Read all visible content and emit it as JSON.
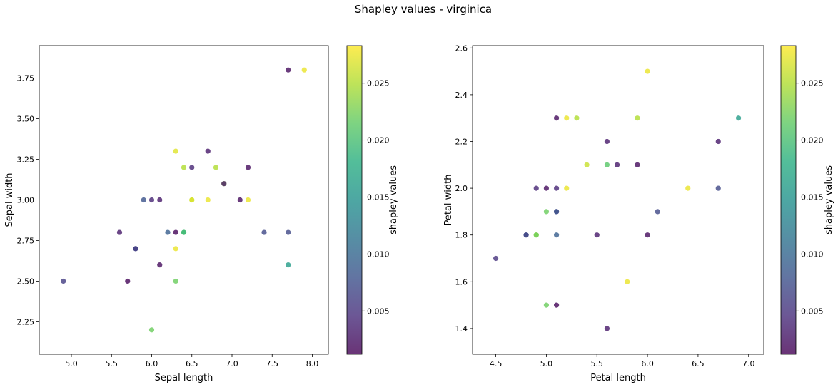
{
  "figure": {
    "suptitle": "Shapley values - virginica"
  },
  "chart_data": [
    {
      "type": "scatter",
      "title": "",
      "xlabel": "Sepal length",
      "ylabel": "Sepal width",
      "xlim": [
        4.6,
        8.2
      ],
      "ylim": [
        2.05,
        3.95
      ],
      "xticks": [
        "5.0",
        "5.5",
        "6.0",
        "6.5",
        "7.0",
        "7.5",
        "8.0"
      ],
      "yticks": [
        "2.25",
        "2.50",
        "2.75",
        "3.00",
        "3.25",
        "3.50",
        "3.75"
      ],
      "colorbar": {
        "label": "shapley values",
        "range": [
          0.0012,
          0.0283
        ],
        "ticks": [
          "0.005",
          "0.010",
          "0.015",
          "0.020",
          "0.025"
        ],
        "colormap": "viridis",
        "alpha": 0.8
      },
      "points": [
        {
          "x": 7.7,
          "y": 3.8,
          "c": 0.002
        },
        {
          "x": 7.9,
          "y": 3.8,
          "c": 0.0275
        },
        {
          "x": 6.7,
          "y": 3.3,
          "c": 0.003
        },
        {
          "x": 6.3,
          "y": 3.3,
          "c": 0.027
        },
        {
          "x": 6.5,
          "y": 3.2,
          "c": 0.004
        },
        {
          "x": 6.4,
          "y": 3.2,
          "c": 0.025
        },
        {
          "x": 6.8,
          "y": 3.2,
          "c": 0.025
        },
        {
          "x": 7.2,
          "y": 3.2,
          "c": 0.002
        },
        {
          "x": 6.9,
          "y": 3.1,
          "c": 0.024
        },
        {
          "x": 6.9,
          "y": 3.1,
          "c": 0.003
        },
        {
          "x": 5.9,
          "y": 3.0,
          "c": 0.008
        },
        {
          "x": 6.0,
          "y": 3.0,
          "c": 0.004
        },
        {
          "x": 6.1,
          "y": 3.0,
          "c": 0.003
        },
        {
          "x": 6.5,
          "y": 3.0,
          "c": 0.025
        },
        {
          "x": 6.5,
          "y": 3.0,
          "c": 0.027
        },
        {
          "x": 6.7,
          "y": 3.0,
          "c": 0.0275
        },
        {
          "x": 7.1,
          "y": 3.0,
          "c": 0.002
        },
        {
          "x": 7.2,
          "y": 3.0,
          "c": 0.0275
        },
        {
          "x": 5.6,
          "y": 2.8,
          "c": 0.003
        },
        {
          "x": 6.2,
          "y": 2.8,
          "c": 0.009
        },
        {
          "x": 6.3,
          "y": 2.8,
          "c": 0.0015
        },
        {
          "x": 6.4,
          "y": 2.8,
          "c": 0.022
        },
        {
          "x": 6.4,
          "y": 2.8,
          "c": 0.019
        },
        {
          "x": 7.4,
          "y": 2.8,
          "c": 0.007
        },
        {
          "x": 7.7,
          "y": 2.8,
          "c": 0.007
        },
        {
          "x": 5.8,
          "y": 2.7,
          "c": 0.007
        },
        {
          "x": 5.8,
          "y": 2.7,
          "c": 0.006
        },
        {
          "x": 6.3,
          "y": 2.7,
          "c": 0.0275
        },
        {
          "x": 6.1,
          "y": 2.6,
          "c": 0.002
        },
        {
          "x": 7.7,
          "y": 2.6,
          "c": 0.016
        },
        {
          "x": 4.9,
          "y": 2.5,
          "c": 0.006
        },
        {
          "x": 5.7,
          "y": 2.5,
          "c": 0.0015
        },
        {
          "x": 6.3,
          "y": 2.5,
          "c": 0.022
        },
        {
          "x": 6.0,
          "y": 2.2,
          "c": 0.022
        }
      ]
    },
    {
      "type": "scatter",
      "title": "",
      "xlabel": "Petal length",
      "ylabel": "Petal width",
      "xlim": [
        4.27,
        7.15
      ],
      "ylim": [
        1.29,
        2.61
      ],
      "xticks": [
        "4.5",
        "5.0",
        "5.5",
        "6.0",
        "6.5",
        "7.0"
      ],
      "yticks": [
        "1.4",
        "1.6",
        "1.8",
        "2.0",
        "2.2",
        "2.4",
        "2.6"
      ],
      "colorbar": {
        "label": "shapley values",
        "range": [
          0.0012,
          0.0283
        ],
        "ticks": [
          "0.005",
          "0.010",
          "0.015",
          "0.020",
          "0.025"
        ],
        "colormap": "viridis",
        "alpha": 0.8
      },
      "points": [
        {
          "x": 6.0,
          "y": 2.5,
          "c": 0.0275
        },
        {
          "x": 5.1,
          "y": 2.3,
          "c": 0.002
        },
        {
          "x": 5.2,
          "y": 2.3,
          "c": 0.0275
        },
        {
          "x": 5.3,
          "y": 2.3,
          "c": 0.025
        },
        {
          "x": 5.9,
          "y": 2.3,
          "c": 0.025
        },
        {
          "x": 6.9,
          "y": 2.3,
          "c": 0.016
        },
        {
          "x": 5.6,
          "y": 2.2,
          "c": 0.003
        },
        {
          "x": 6.7,
          "y": 2.2,
          "c": 0.003
        },
        {
          "x": 5.4,
          "y": 2.1,
          "c": 0.026
        },
        {
          "x": 5.6,
          "y": 2.1,
          "c": 0.021
        },
        {
          "x": 5.7,
          "y": 2.1,
          "c": 0.003
        },
        {
          "x": 5.9,
          "y": 2.1,
          "c": 0.002
        },
        {
          "x": 4.9,
          "y": 2.0,
          "c": 0.004
        },
        {
          "x": 5.0,
          "y": 2.0,
          "c": 0.002
        },
        {
          "x": 5.1,
          "y": 2.0,
          "c": 0.004
        },
        {
          "x": 5.2,
          "y": 2.0,
          "c": 0.0275
        },
        {
          "x": 6.4,
          "y": 2.0,
          "c": 0.0275
        },
        {
          "x": 6.7,
          "y": 2.0,
          "c": 0.007
        },
        {
          "x": 5.0,
          "y": 1.9,
          "c": 0.022
        },
        {
          "x": 5.1,
          "y": 1.9,
          "c": 0.006
        },
        {
          "x": 5.1,
          "y": 1.9,
          "c": 0.008
        },
        {
          "x": 6.1,
          "y": 1.9,
          "c": 0.007
        },
        {
          "x": 4.8,
          "y": 1.8,
          "c": 0.006
        },
        {
          "x": 4.8,
          "y": 1.8,
          "c": 0.007
        },
        {
          "x": 4.9,
          "y": 1.8,
          "c": 0.025
        },
        {
          "x": 4.9,
          "y": 1.8,
          "c": 0.022
        },
        {
          "x": 5.1,
          "y": 1.8,
          "c": 0.009
        },
        {
          "x": 5.5,
          "y": 1.8,
          "c": 0.003
        },
        {
          "x": 6.0,
          "y": 1.8,
          "c": 0.002
        },
        {
          "x": 4.5,
          "y": 1.7,
          "c": 0.005
        },
        {
          "x": 5.8,
          "y": 1.6,
          "c": 0.0275
        },
        {
          "x": 5.0,
          "y": 1.5,
          "c": 0.022
        },
        {
          "x": 5.1,
          "y": 1.5,
          "c": 0.0015
        },
        {
          "x": 5.6,
          "y": 1.4,
          "c": 0.003
        }
      ]
    }
  ]
}
